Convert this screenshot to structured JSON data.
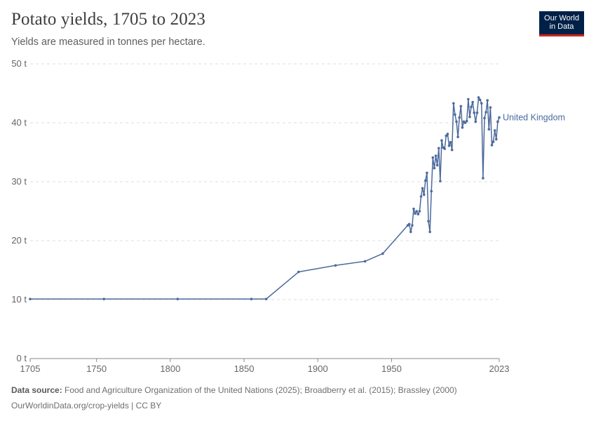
{
  "header": {
    "title": "Potato yields, 1705 to 2023",
    "subtitle": "Yields are measured in tonnes per hectare."
  },
  "logo": {
    "line1": "Our World",
    "line2": "in Data"
  },
  "footer": {
    "source_label": "Data source:",
    "source_text": "Food and Agriculture Organization of the United Nations (2025); Broadberry et al. (2015); Brassley (2000)",
    "url_text": "OurWorldinData.org/crop-yields | CC BY"
  },
  "colors": {
    "series": "#4c6a9c",
    "grid": "#dddddd",
    "axis": "#8a8a8a",
    "logo_bg": "#002147",
    "logo_accent": "#ce261e"
  },
  "chart_data": {
    "type": "line",
    "title": "Potato yields, 1705 to 2023",
    "xlabel": "",
    "ylabel": "",
    "xlim": [
      1705,
      2023
    ],
    "ylim": [
      0,
      50
    ],
    "x_ticks": [
      {
        "value": 1705,
        "label": "1705"
      },
      {
        "value": 1750,
        "label": "1750"
      },
      {
        "value": 1800,
        "label": "1800"
      },
      {
        "value": 1850,
        "label": "1850"
      },
      {
        "value": 1900,
        "label": "1900"
      },
      {
        "value": 1950,
        "label": "1950"
      },
      {
        "value": 2023,
        "label": "2023"
      }
    ],
    "y_ticks": [
      {
        "value": 0,
        "label": "0 t"
      },
      {
        "value": 10,
        "label": "10 t"
      },
      {
        "value": 20,
        "label": "20 t"
      },
      {
        "value": 30,
        "label": "30 t"
      },
      {
        "value": 40,
        "label": "40 t"
      },
      {
        "value": 50,
        "label": "50 t"
      }
    ],
    "series": [
      {
        "name": "United Kingdom",
        "points": [
          [
            1705,
            10.1
          ],
          [
            1755,
            10.1
          ],
          [
            1805,
            10.1
          ],
          [
            1855,
            10.1
          ],
          [
            1865,
            10.1
          ],
          [
            1887,
            14.7
          ],
          [
            1912,
            15.8
          ],
          [
            1932,
            16.5
          ],
          [
            1944,
            17.8
          ],
          [
            1961,
            22.6
          ],
          [
            1962,
            22.8
          ],
          [
            1963,
            21.5
          ],
          [
            1964,
            22.6
          ],
          [
            1965,
            25.4
          ],
          [
            1966,
            24.6
          ],
          [
            1967,
            25.0
          ],
          [
            1968,
            24.5
          ],
          [
            1969,
            25.0
          ],
          [
            1970,
            27.5
          ],
          [
            1971,
            28.9
          ],
          [
            1972,
            27.8
          ],
          [
            1973,
            30.2
          ],
          [
            1974,
            31.5
          ],
          [
            1975,
            23.3
          ],
          [
            1976,
            21.5
          ],
          [
            1977,
            28.4
          ],
          [
            1978,
            34.1
          ],
          [
            1979,
            32.3
          ],
          [
            1980,
            34.4
          ],
          [
            1981,
            32.8
          ],
          [
            1982,
            35.7
          ],
          [
            1983,
            30.1
          ],
          [
            1984,
            37.0
          ],
          [
            1985,
            35.8
          ],
          [
            1986,
            35.6
          ],
          [
            1987,
            37.8
          ],
          [
            1988,
            38.1
          ],
          [
            1989,
            36.1
          ],
          [
            1990,
            36.7
          ],
          [
            1991,
            35.4
          ],
          [
            1992,
            43.3
          ],
          [
            1993,
            41.4
          ],
          [
            1994,
            40.2
          ],
          [
            1995,
            37.6
          ],
          [
            1996,
            40.9
          ],
          [
            1997,
            42.8
          ],
          [
            1998,
            39.2
          ],
          [
            1999,
            40.2
          ],
          [
            2000,
            40.0
          ],
          [
            2001,
            40.3
          ],
          [
            2002,
            44.0
          ],
          [
            2003,
            41.0
          ],
          [
            2004,
            42.7
          ],
          [
            2005,
            43.5
          ],
          [
            2006,
            41.7
          ],
          [
            2007,
            40.2
          ],
          [
            2008,
            41.7
          ],
          [
            2009,
            44.3
          ],
          [
            2010,
            43.9
          ],
          [
            2011,
            43.3
          ],
          [
            2012,
            30.6
          ],
          [
            2013,
            40.8
          ],
          [
            2014,
            41.8
          ],
          [
            2015,
            43.8
          ],
          [
            2016,
            38.9
          ],
          [
            2017,
            42.6
          ],
          [
            2018,
            36.2
          ],
          [
            2019,
            36.8
          ],
          [
            2020,
            38.7
          ],
          [
            2021,
            37.2
          ],
          [
            2022,
            40.2
          ],
          [
            2023,
            40.9
          ]
        ]
      }
    ]
  }
}
